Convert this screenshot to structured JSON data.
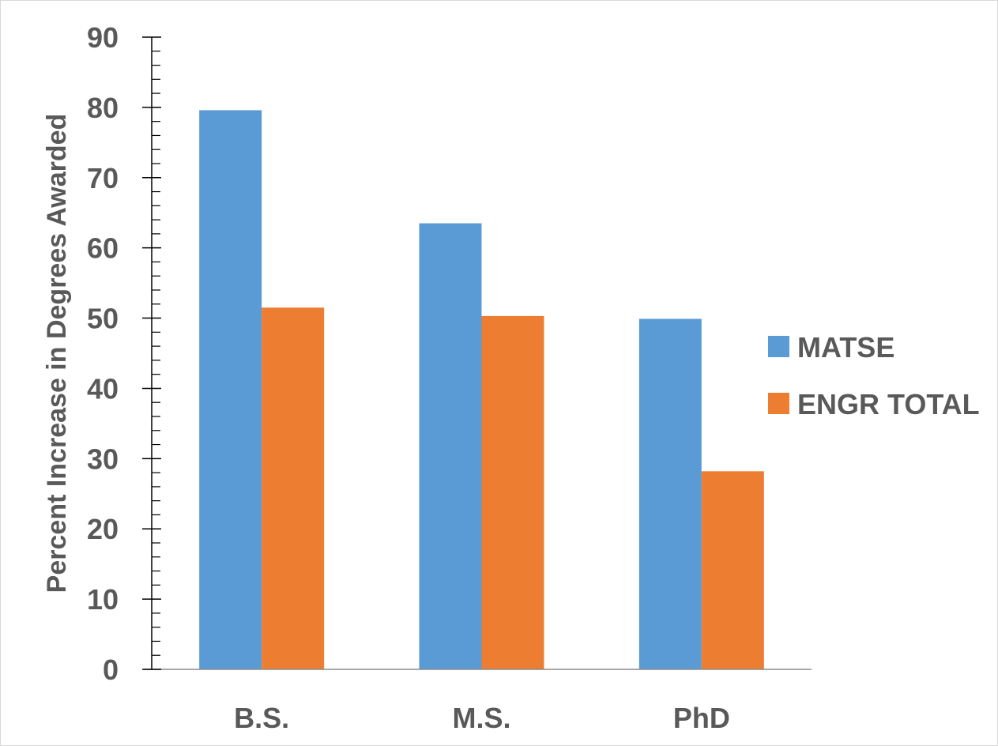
{
  "chart_data": {
    "type": "bar",
    "title": "",
    "xlabel": "",
    "ylabel": "Percent Increase in Degrees Awarded",
    "categories": [
      "B.S.",
      "M.S.",
      "PhD"
    ],
    "series": [
      {
        "name": "MATSE",
        "values": [
          79.6,
          63.5,
          49.9
        ],
        "color": "#5B9BD5"
      },
      {
        "name": "ENGR TOTAL",
        "values": [
          51.5,
          50.3,
          28.2
        ],
        "color": "#ED7D31"
      }
    ],
    "ylim": [
      0,
      90
    ],
    "y_ticks": [
      "0",
      "10",
      "20",
      "30",
      "40",
      "50",
      "60",
      "70",
      "80",
      "90"
    ],
    "grid": false,
    "legend_position": "right"
  }
}
